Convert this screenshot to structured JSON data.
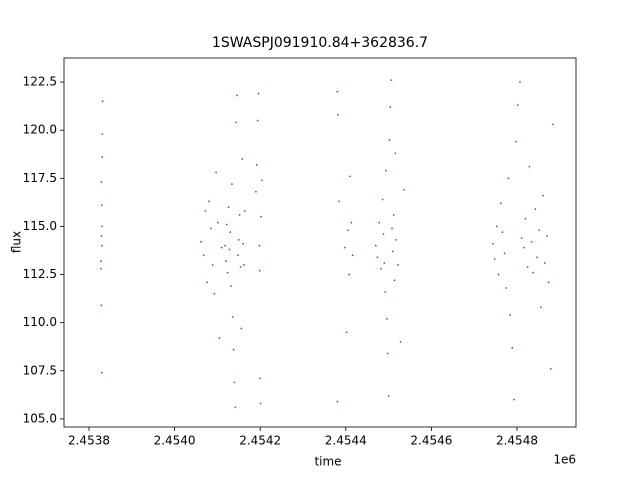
{
  "chart_data": {
    "type": "scatter",
    "title": "1SWASPJ091910.84+362836.7",
    "x_label": "time",
    "y_label": "flux",
    "x_offset_label": "1e6",
    "xlim": [
      2453741.6,
      2454937.9
    ],
    "ylim": [
      104.58,
      123.75
    ],
    "xticks": [
      {
        "value": 2453800,
        "label": "2.4538"
      },
      {
        "value": 2454000,
        "label": "2.4540"
      },
      {
        "value": 2454200,
        "label": "2.4542"
      },
      {
        "value": 2454400,
        "label": "2.4544"
      },
      {
        "value": 2454600,
        "label": "2.4546"
      },
      {
        "value": 2454800,
        "label": "2.4548"
      }
    ],
    "yticks": [
      {
        "value": 105,
        "label": "105.0"
      },
      {
        "value": 107.5,
        "label": "107.5"
      },
      {
        "value": 110,
        "label": "110.0"
      },
      {
        "value": 112.5,
        "label": "112.5"
      },
      {
        "value": 115,
        "label": "115.0"
      },
      {
        "value": 117.5,
        "label": "117.5"
      },
      {
        "value": 120,
        "label": "120.0"
      },
      {
        "value": 122.5,
        "label": "122.5"
      }
    ],
    "series": [
      {
        "color": "#1f77b4",
        "x": [
          2453828,
          2453829,
          2453830,
          2453829,
          2453831,
          2453830,
          2453828,
          2453829,
          2453830,
          2453831,
          2453832,
          2453830,
          2454062,
          2454068,
          2454072,
          2454076,
          2454080,
          2454085,
          2454089,
          2454093,
          2454097,
          2454101,
          2454105,
          2454110,
          2454118,
          2454120,
          2454122,
          2454124,
          2454126,
          2454128,
          2454130,
          2454132,
          2454134,
          2454136,
          2454138,
          2454140,
          2454142,
          2454144,
          2454146,
          2454148,
          2454150,
          2454152,
          2454154,
          2454156,
          2454158,
          2454160,
          2454162,
          2454164,
          2454190,
          2454192,
          2454194,
          2454196,
          2454198,
          2454199,
          2454200,
          2454201,
          2454202,
          2454204,
          2454380,
          2454382,
          2454384,
          2454398,
          2454402,
          2454405,
          2454408,
          2454410,
          2454413,
          2454416,
          2454380,
          2454470,
          2454474,
          2454478,
          2454482,
          2454486,
          2454488,
          2454490,
          2454492,
          2454494,
          2454496,
          2454498,
          2454500,
          2454502,
          2454504,
          2454506,
          2454508,
          2454510,
          2454512,
          2454514,
          2454516,
          2454518,
          2454522,
          2454528,
          2454536,
          2454744,
          2454748,
          2454753,
          2454757,
          2454762,
          2454766,
          2454771,
          2454775,
          2454780,
          2454784,
          2454789,
          2454793,
          2454798,
          2454802,
          2454807,
          2454811,
          2454816,
          2454820,
          2454825,
          2454829,
          2454834,
          2454838,
          2454843,
          2454847,
          2454852,
          2454856,
          2454861,
          2454865,
          2454870,
          2454874,
          2454879,
          2454884
        ],
        "values": [
          113.2,
          114.5,
          116.1,
          117.3,
          118.6,
          115.0,
          112.8,
          110.9,
          107.4,
          119.8,
          121.5,
          114.0,
          114.2,
          113.5,
          115.8,
          112.1,
          116.3,
          114.9,
          113.0,
          111.5,
          117.8,
          115.2,
          109.2,
          113.9,
          114.0,
          113.2,
          115.1,
          112.6,
          116.0,
          113.8,
          114.7,
          111.9,
          117.2,
          110.3,
          108.6,
          106.9,
          105.6,
          120.4,
          121.8,
          113.5,
          114.3,
          115.6,
          112.9,
          109.7,
          118.5,
          114.1,
          113.0,
          115.8,
          116.8,
          118.2,
          120.5,
          121.9,
          114.0,
          112.7,
          107.1,
          105.8,
          115.5,
          117.4,
          122.0,
          120.8,
          116.3,
          113.9,
          109.5,
          114.8,
          112.5,
          117.6,
          115.2,
          113.5,
          105.9,
          114.0,
          113.4,
          115.2,
          112.8,
          116.4,
          114.6,
          113.1,
          111.6,
          117.9,
          110.2,
          108.4,
          106.2,
          119.5,
          121.2,
          122.6,
          114.9,
          113.7,
          115.6,
          112.2,
          118.8,
          114.3,
          113.0,
          109.0,
          116.9,
          114.1,
          113.3,
          115.0,
          112.5,
          116.2,
          114.7,
          113.6,
          111.8,
          117.5,
          110.4,
          108.7,
          106.0,
          119.4,
          121.3,
          122.5,
          114.4,
          113.9,
          115.4,
          112.9,
          118.1,
          114.2,
          112.6,
          115.9,
          113.4,
          114.8,
          110.8,
          116.6,
          113.1,
          114.5,
          112.1,
          107.6,
          120.3
        ]
      }
    ]
  }
}
